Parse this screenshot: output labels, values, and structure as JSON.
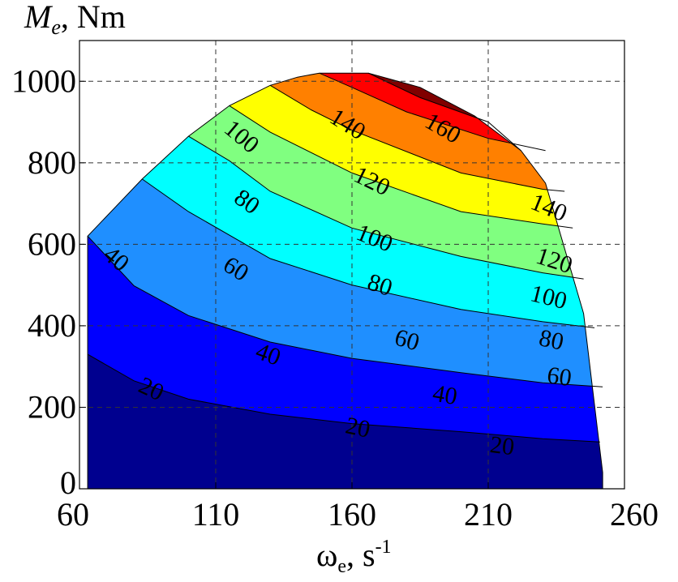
{
  "chart_data": {
    "type": "contourf",
    "xlabel_main": "ω",
    "xlabel_sub": "e",
    "xlabel_sep": ", s",
    "xlabel_sup": "-1",
    "ylabel_main": "M",
    "ylabel_sub": "e",
    "ylabel_unit": ", Nm",
    "xlim": [
      60,
      260
    ],
    "ylim": [
      0,
      1100
    ],
    "xticks": [
      60,
      110,
      160,
      210,
      260
    ],
    "yticks": [
      0,
      200,
      400,
      600,
      800,
      1000
    ],
    "grid": true,
    "levels": [
      20,
      40,
      60,
      80,
      100,
      120,
      140,
      160
    ],
    "band_colors": [
      "#00008f",
      "#0000ff",
      "#1f8fff",
      "#00ffff",
      "#80ff80",
      "#ffff00",
      "#ff8000",
      "#ff0000",
      "#800000"
    ],
    "max_torque_envelope": [
      [
        63,
        0
      ],
      [
        63,
        620
      ],
      [
        83,
        760
      ],
      [
        100,
        865
      ],
      [
        115,
        940
      ],
      [
        130,
        990
      ],
      [
        140,
        1010
      ],
      [
        148,
        1020
      ],
      [
        166,
        1020
      ],
      [
        185,
        985
      ],
      [
        205,
        915
      ],
      [
        222,
        830
      ],
      [
        231,
        750
      ],
      [
        245,
        430
      ],
      [
        250,
        150
      ],
      [
        252,
        40
      ],
      [
        252,
        0
      ]
    ],
    "isolines": [
      {
        "level": 20,
        "points": [
          [
            63,
            330
          ],
          [
            80,
            265
          ],
          [
            100,
            220
          ],
          [
            130,
            183
          ],
          [
            160,
            160
          ],
          [
            200,
            140
          ],
          [
            230,
            123
          ],
          [
            251,
            115
          ]
        ]
      },
      {
        "level": 40,
        "points": [
          [
            63,
            620
          ],
          [
            80,
            498
          ],
          [
            100,
            425
          ],
          [
            130,
            360
          ],
          [
            160,
            320
          ],
          [
            200,
            285
          ],
          [
            230,
            260
          ],
          [
            252,
            250
          ]
        ]
      },
      {
        "level": 60,
        "points": [
          [
            83,
            760
          ],
          [
            100,
            680
          ],
          [
            130,
            565
          ],
          [
            160,
            500
          ],
          [
            200,
            440
          ],
          [
            230,
            410
          ],
          [
            249,
            395
          ]
        ]
      },
      {
        "level": 80,
        "points": [
          [
            100,
            865
          ],
          [
            115,
            805
          ],
          [
            130,
            730
          ],
          [
            160,
            640
          ],
          [
            200,
            570
          ],
          [
            230,
            530
          ],
          [
            245,
            515
          ]
        ]
      },
      {
        "level": 100,
        "points": [
          [
            115,
            940
          ],
          [
            130,
            875
          ],
          [
            160,
            775
          ],
          [
            200,
            680
          ],
          [
            230,
            650
          ],
          [
            241,
            640
          ]
        ]
      },
      {
        "level": 120,
        "points": [
          [
            130,
            990
          ],
          [
            145,
            930
          ],
          [
            160,
            880
          ],
          [
            200,
            775
          ],
          [
            230,
            735
          ],
          [
            238,
            730
          ]
        ]
      },
      {
        "level": 140,
        "points": [
          [
            148,
            1020
          ],
          [
            160,
            985
          ],
          [
            180,
            925
          ],
          [
            210,
            860
          ],
          [
            231,
            830
          ]
        ]
      },
      {
        "level": 160,
        "points": [
          [
            166,
            1020
          ],
          [
            185,
            960
          ],
          [
            210,
            900
          ],
          [
            222,
            830
          ]
        ]
      }
    ],
    "contour_labels": [
      {
        "text": "20",
        "x": 86,
        "y": 240,
        "angle": 25
      },
      {
        "text": "20",
        "x": 162,
        "y": 145,
        "angle": 12
      },
      {
        "text": "20",
        "x": 215,
        "y": 100,
        "angle": 7
      },
      {
        "text": "40",
        "x": 73,
        "y": 560,
        "angle": 40
      },
      {
        "text": "40",
        "x": 129,
        "y": 325,
        "angle": 20
      },
      {
        "text": "40",
        "x": 194,
        "y": 225,
        "angle": 10
      },
      {
        "text": "60",
        "x": 117,
        "y": 535,
        "angle": 32
      },
      {
        "text": "60",
        "x": 180,
        "y": 360,
        "angle": 16
      },
      {
        "text": "60",
        "x": 236,
        "y": 270,
        "angle": 8
      },
      {
        "text": "80",
        "x": 121,
        "y": 700,
        "angle": 35
      },
      {
        "text": "80",
        "x": 170,
        "y": 495,
        "angle": 18
      },
      {
        "text": "80",
        "x": 233,
        "y": 360,
        "angle": 12
      },
      {
        "text": "100",
        "x": 119,
        "y": 860,
        "angle": 40
      },
      {
        "text": "100",
        "x": 168,
        "y": 610,
        "angle": 22
      },
      {
        "text": "100",
        "x": 232,
        "y": 465,
        "angle": 14
      },
      {
        "text": "120",
        "x": 167,
        "y": 750,
        "angle": 26
      },
      {
        "text": "120",
        "x": 234,
        "y": 555,
        "angle": 18
      },
      {
        "text": "140",
        "x": 158,
        "y": 890,
        "angle": 32
      },
      {
        "text": "140",
        "x": 232,
        "y": 685,
        "angle": 22
      },
      {
        "text": "160",
        "x": 193,
        "y": 880,
        "angle": 30
      }
    ]
  }
}
